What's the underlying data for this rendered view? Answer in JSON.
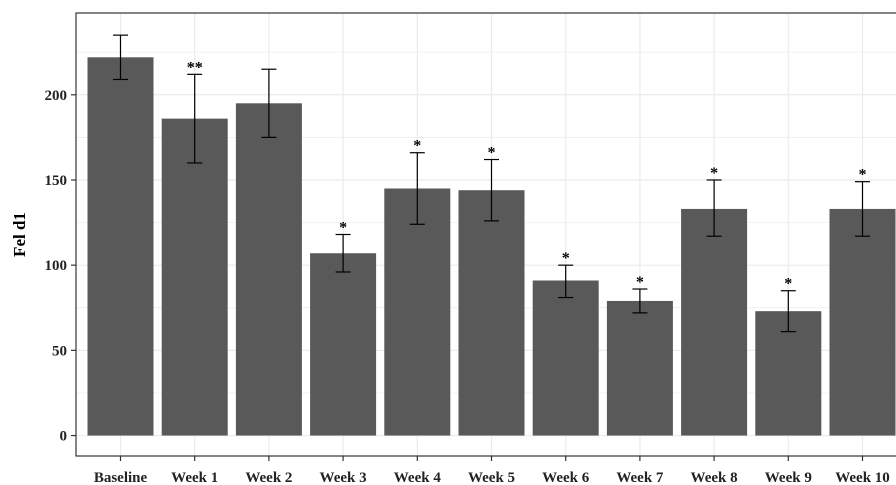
{
  "chart_data": {
    "type": "bar",
    "title": "",
    "xlabel": "",
    "ylabel": "Fel d1",
    "categories": [
      "Baseline",
      "Week 1",
      "Week 2",
      "Week 3",
      "Week 4",
      "Week 5",
      "Week 6",
      "Week 7",
      "Week 8",
      "Week 9",
      "Week 10"
    ],
    "values": [
      222,
      186,
      195,
      107,
      145,
      144,
      91,
      79,
      133,
      73,
      133
    ],
    "error_low": [
      209,
      160,
      175,
      96,
      124,
      126,
      81,
      72,
      117,
      61,
      117
    ],
    "error_high": [
      235,
      212,
      215,
      118,
      166,
      162,
      100,
      86,
      150,
      85,
      149
    ],
    "significance": [
      "",
      "**",
      "",
      "*",
      "*",
      "*",
      "*",
      "*",
      "*",
      "*",
      "*"
    ],
    "yticks": [
      0,
      50,
      100,
      150,
      200
    ],
    "ylim": [
      -12,
      248
    ],
    "grid": true,
    "colors": {
      "bar": "#595959",
      "grid": "#ebebeb",
      "axis": "#333333",
      "error": "#000000"
    }
  }
}
